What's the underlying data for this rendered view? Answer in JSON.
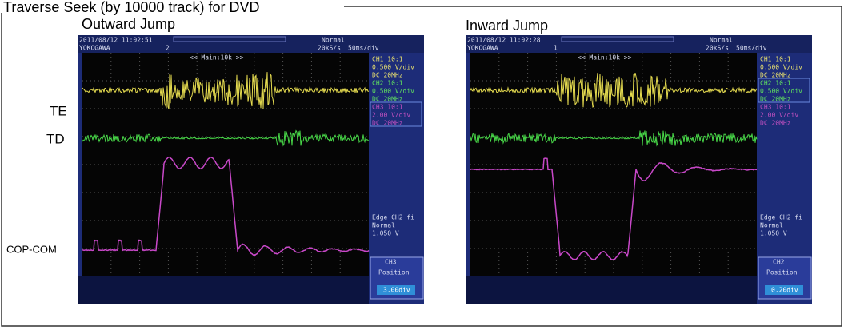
{
  "title": "Traverse Seek (by 10000 track) for DVD",
  "trace_labels": [
    "TE",
    "TD",
    "COP-COM"
  ],
  "panels": [
    {
      "title": "Outward Jump",
      "scope": {
        "timestamp": "2011/08/12 11:02:51",
        "brand": "YOKOGAWA",
        "record": "2",
        "mode": "Normal",
        "rate": "20kS/s",
        "timebase": "50ms/div",
        "zoom": "<< Main:10k >>",
        "channels": [
          "CH1 10:1",
          "0.500 V/div",
          "DC  20MHz",
          "CH2 10:1",
          "0.500 V/div",
          "DC  20MHz",
          "CH3 10:1",
          "2.00 V/div",
          "DC  20MHz"
        ],
        "trigger": [
          "Edge CH2 fi",
          "Normal",
          "1.050 V"
        ],
        "softkey": "CH3",
        "position_label": "Position",
        "position_value": "3.00div"
      }
    },
    {
      "title": "Inward Jump",
      "scope": {
        "timestamp": "2011/08/12 11:02:28",
        "brand": "YOKOGAWA",
        "record": "1",
        "mode": "Normal",
        "rate": "20kS/s",
        "timebase": "50ms/div",
        "zoom": "<< Main:10k >>",
        "channels": [
          "CH1 10:1",
          "0.500 V/div",
          "DC  20MHz",
          "CH2 10:1",
          "0.500 V/div",
          "DC  20MHz",
          "CH3 10:1",
          "2.00 V/div",
          "DC  20MHz"
        ],
        "trigger": [
          "Edge CH2 fi",
          "Normal",
          "1.050 V"
        ],
        "softkey": "CH2",
        "position_label": "Position",
        "position_value": "0.20div"
      }
    }
  ]
}
